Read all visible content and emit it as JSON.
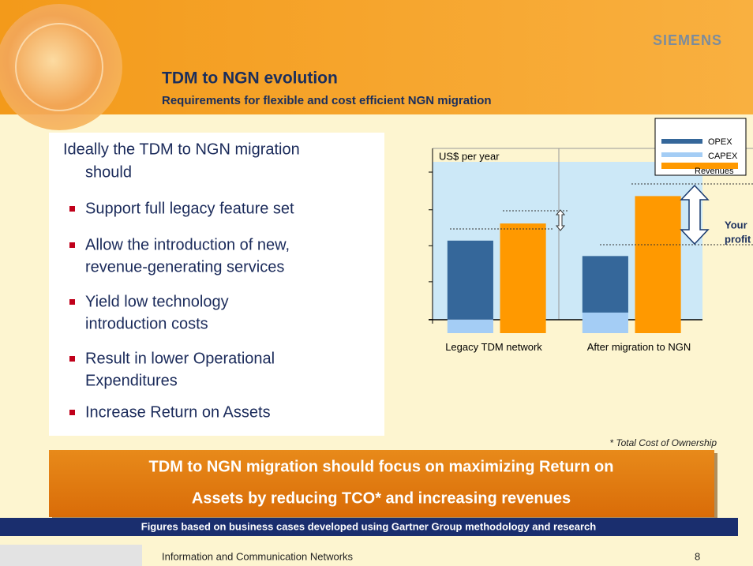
{
  "header": {
    "title": "TDM to NGN evolution",
    "subtitle": "Requirements for flexible and cost efficient NGN migration",
    "brand": "SIEMENS"
  },
  "intro": [
    "Ideally the TDM to NGN migration",
    "should"
  ],
  "bullets": [
    [
      "Support full legacy feature set"
    ],
    [
      "Allow the introduction of new,",
      "revenue-generating services"
    ],
    [
      "Yield low technology",
      "introduction costs"
    ],
    [
      "Result in lower Operational",
      "Expenditures"
    ],
    [
      "Increase Return on Assets"
    ]
  ],
  "chart_data": {
    "type": "bar",
    "ylabel": "US$ per year",
    "categories": [
      "Legacy TDM network",
      "After migration to NGN"
    ],
    "series": [
      {
        "name": "OPEX",
        "color": "#35679a",
        "values": [
          46,
          33
        ]
      },
      {
        "name": "CAPEX",
        "color": "#a4cdf5",
        "values": [
          8,
          12
        ]
      },
      {
        "name": "Revenues",
        "color": "#ff9900",
        "values": [
          64,
          80
        ]
      }
    ],
    "ylim": [
      0,
      100
    ],
    "yticks": [
      8,
      30,
      51,
      72,
      94
    ],
    "annotation": [
      "Your",
      "profit !"
    ]
  },
  "footnote": "* Total Cost of Ownership",
  "banner": [
    "TDM to NGN migration should focus on maximizing Return on",
    "Assets by reducing TCO* and increasing revenues"
  ],
  "source_bar": "Figures based on business cases developed using Gartner Group methodology and research",
  "footer": {
    "text": "Information and Communication Networks",
    "page": 8
  }
}
